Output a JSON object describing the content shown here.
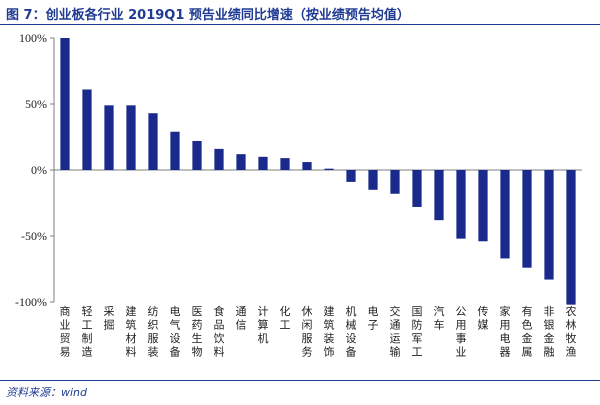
{
  "figure": {
    "title": "图 7：创业板各行业 2019Q1 预告业绩同比增速（按业绩预告均值）",
    "source": "资料来源：wind"
  },
  "colors": {
    "bar": "#1a2a8c",
    "axis": "#7f7f7f",
    "accent": "#1f3a93"
  },
  "chart_data": {
    "type": "bar",
    "title": "",
    "xlabel": "",
    "ylabel": "",
    "ylim": [
      -100,
      100
    ],
    "yticks": [
      100,
      50,
      0,
      -50,
      -100
    ],
    "ytick_labels": [
      "100%",
      "50%",
      "0%",
      "-50%",
      "-100%"
    ],
    "grid": false,
    "legend": "none",
    "categories": [
      "商业贸易",
      "轻工制造",
      "采掘",
      "建筑材料",
      "纺织服装",
      "电气设备",
      "医药生物",
      "食品饮料",
      "通信",
      "计算机",
      "化工",
      "休闲服务",
      "建筑装饰",
      "机械设备",
      "电子",
      "交通运输",
      "国防军工",
      "汽车",
      "公用事业",
      "传媒",
      "家用电器",
      "有色金属",
      "非银金融",
      "农林牧渔"
    ],
    "values": [
      100,
      61,
      49,
      49,
      43,
      29,
      22,
      16,
      12,
      10,
      9,
      6,
      1,
      -9,
      -15,
      -18,
      -28,
      -38,
      -52,
      -54,
      -67,
      -74,
      -83,
      -102
    ]
  }
}
